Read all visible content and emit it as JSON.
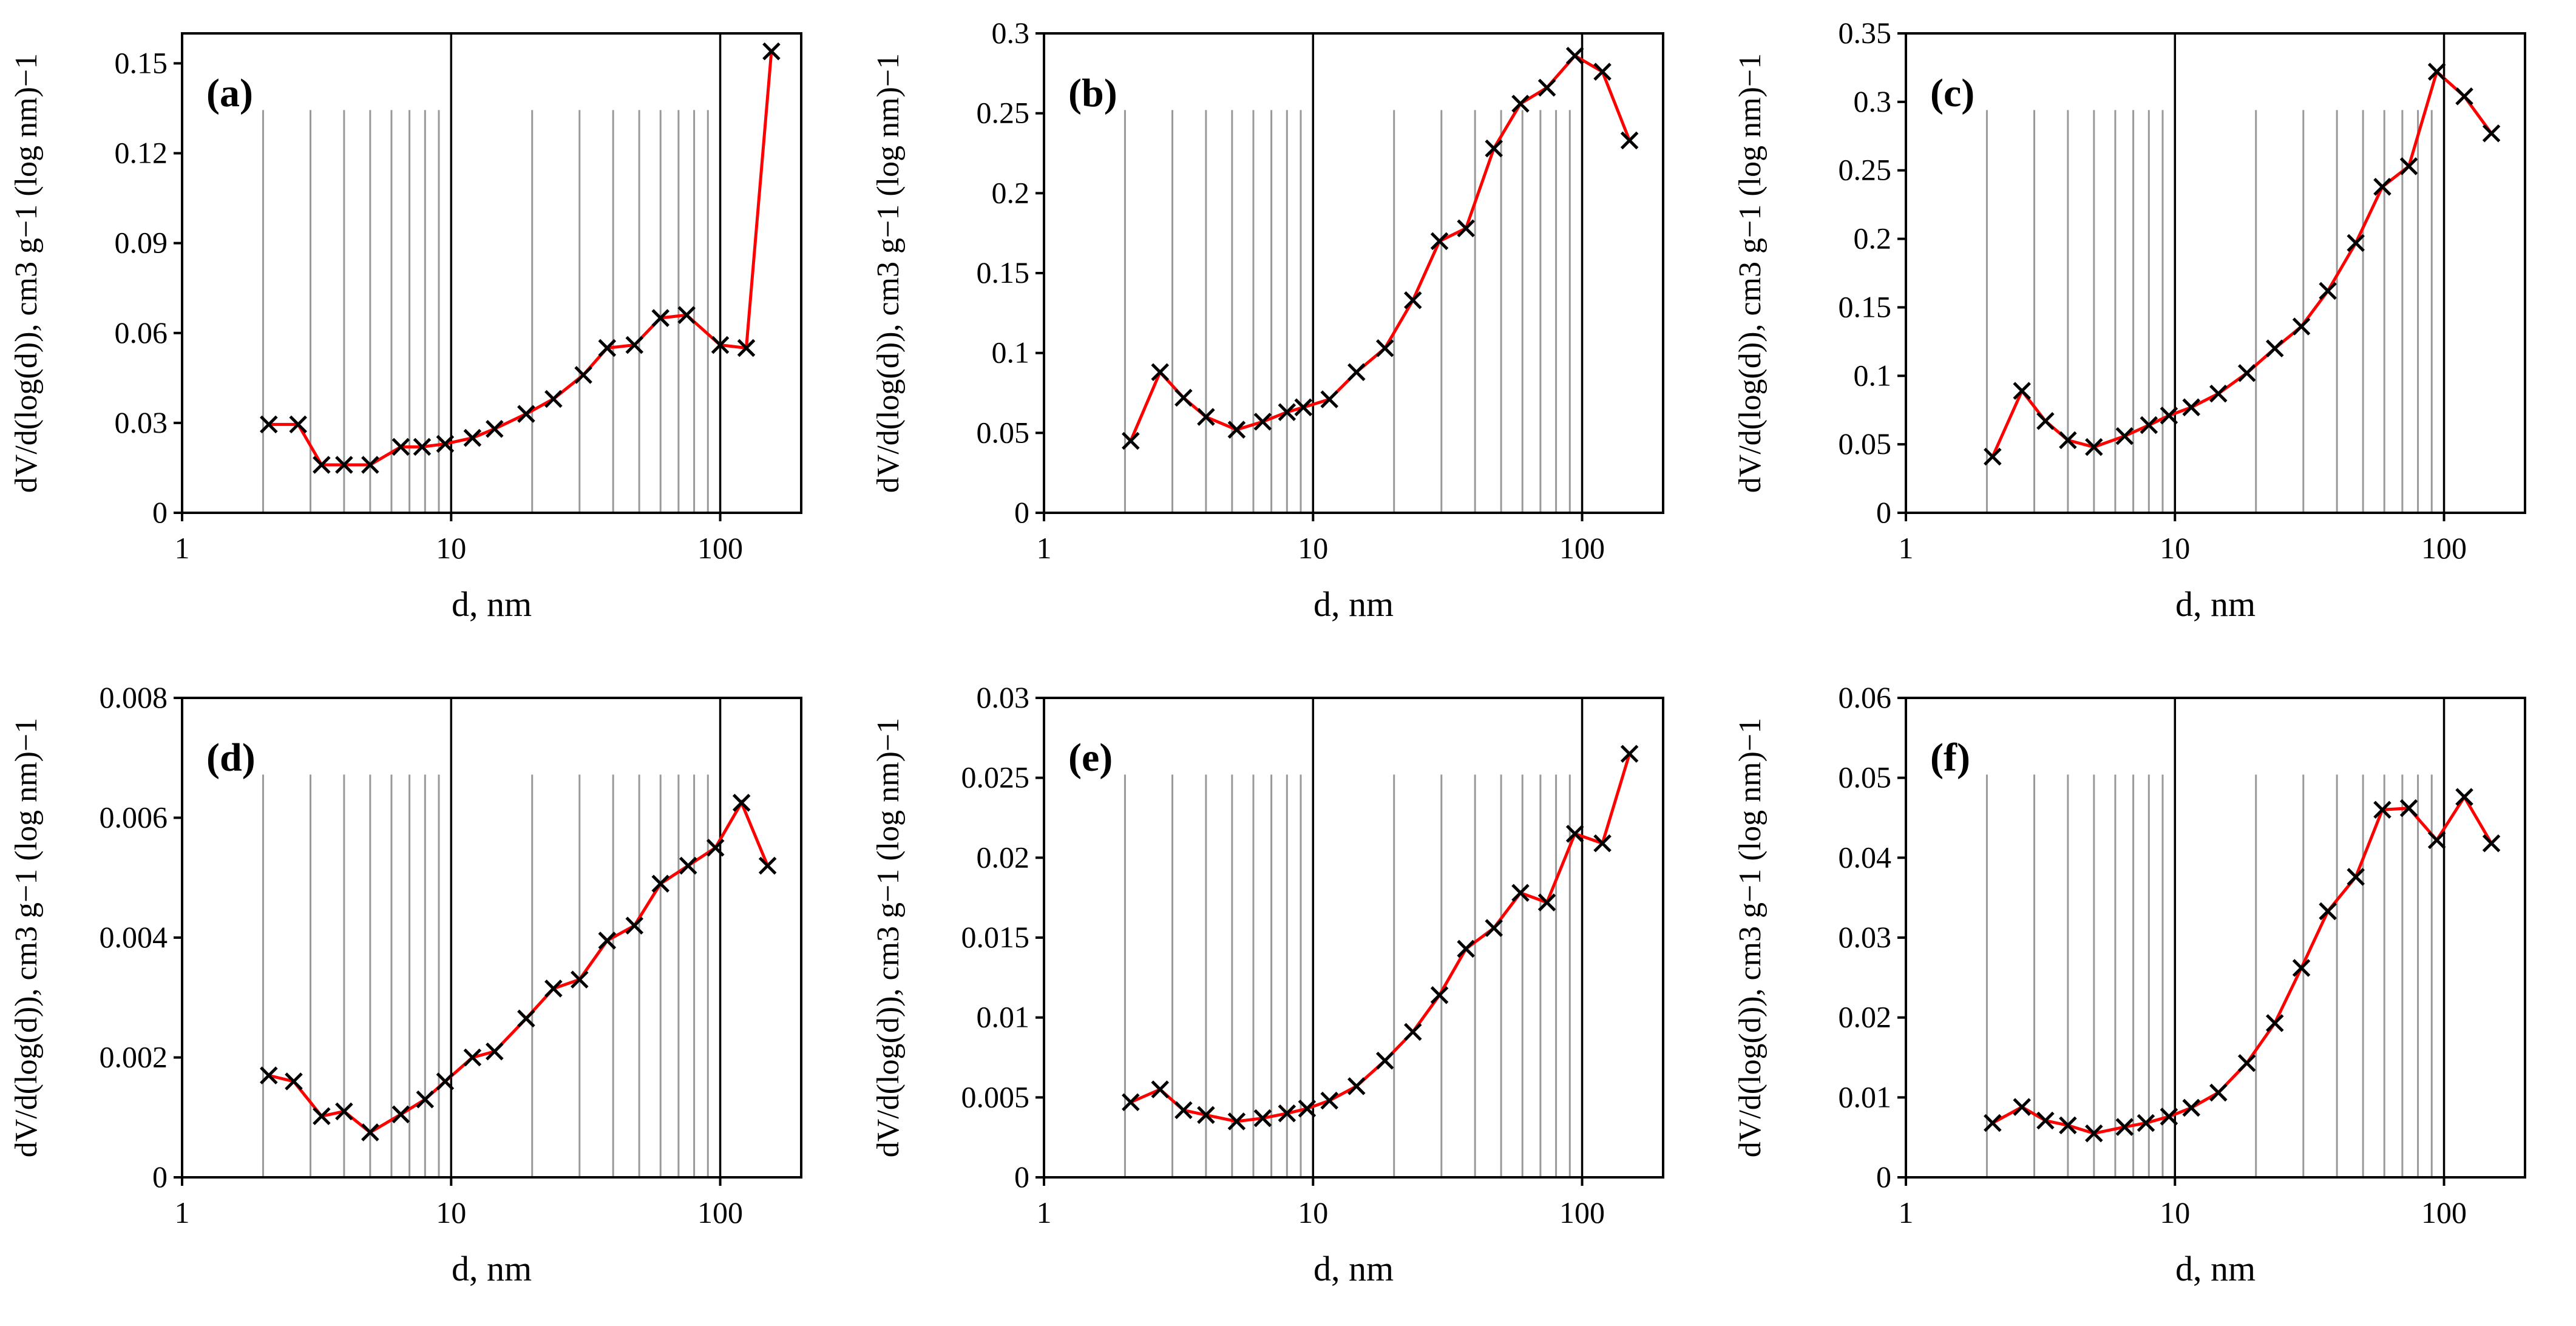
{
  "figure": {
    "description_label": "dV/d(log(d)) pore size distribution panels"
  },
  "chart_data": [
    {
      "type": "line",
      "panel": "a",
      "letter": "a",
      "xlabel": "d, nm",
      "xscale": "log",
      "xlim": [
        1,
        200
      ],
      "xticks": [
        "1",
        "10",
        "100"
      ],
      "ylabel": "dV/d(log(d)), cm3 g−1 (log nm)−1",
      "ylim": [
        0,
        0.16
      ],
      "yticks": [
        "0",
        "0.03",
        "0.06",
        "0.09",
        "0.12",
        "0.15"
      ],
      "grid_minor_x": true,
      "series": [
        {
          "name": "a",
          "color": "#ff0000",
          "marker": "x",
          "x": [
            2.1,
            2.7,
            3.3,
            4.0,
            5.0,
            6.5,
            7.8,
            9.5,
            12,
            14.5,
            19,
            24,
            31,
            38,
            48,
            60,
            75,
            100,
            125,
            155
          ],
          "y": [
            0.0295,
            0.0295,
            0.016,
            0.016,
            0.016,
            0.022,
            0.022,
            0.023,
            0.025,
            0.028,
            0.033,
            0.038,
            0.046,
            0.055,
            0.056,
            0.065,
            0.066,
            0.056,
            0.055,
            0.154
          ]
        }
      ]
    },
    {
      "type": "line",
      "panel": "b",
      "letter": "b",
      "xlabel": "d, nm",
      "xscale": "log",
      "xlim": [
        1,
        200
      ],
      "xticks": [
        "1",
        "10",
        "100"
      ],
      "ylabel": "dV/d(log(d)), cm3 g−1 (log nm)−1",
      "ylim": [
        0,
        0.3
      ],
      "yticks": [
        "0",
        "0.05",
        "0.1",
        "0.15",
        "0.2",
        "0.25",
        "0.3"
      ],
      "grid_minor_x": true,
      "series": [
        {
          "name": "b",
          "color": "#ff0000",
          "marker": "x",
          "x": [
            2.1,
            2.7,
            3.3,
            4.0,
            5.2,
            6.5,
            8.0,
            9.2,
            11.5,
            14.5,
            18.5,
            23.5,
            29.5,
            37,
            47,
            59,
            74,
            94,
            119,
            150
          ],
          "y": [
            0.045,
            0.088,
            0.072,
            0.06,
            0.052,
            0.057,
            0.063,
            0.066,
            0.071,
            0.088,
            0.103,
            0.133,
            0.17,
            0.178,
            0.228,
            0.256,
            0.266,
            0.286,
            0.276,
            0.233
          ]
        }
      ]
    },
    {
      "type": "line",
      "panel": "c",
      "letter": "c",
      "xlabel": "d, nm",
      "xscale": "log",
      "xlim": [
        1,
        200
      ],
      "xticks": [
        "1",
        "10",
        "100"
      ],
      "ylabel": "dV/d(log(d)), cm3 g−1 (log nm)−1",
      "ylim": [
        0,
        0.35
      ],
      "yticks": [
        "0",
        "0.05",
        "0.1",
        "0.15",
        "0.2",
        "0.25",
        "0.3",
        "0.35"
      ],
      "grid_minor_x": true,
      "series": [
        {
          "name": "c",
          "color": "#ff0000",
          "marker": "x",
          "x": [
            2.1,
            2.7,
            3.3,
            4.0,
            5.0,
            6.5,
            8.0,
            9.5,
            11.5,
            14.5,
            18.5,
            23.5,
            29.5,
            37,
            47,
            59,
            74,
            94,
            119,
            150
          ],
          "y": [
            0.041,
            0.089,
            0.067,
            0.053,
            0.048,
            0.056,
            0.064,
            0.071,
            0.077,
            0.087,
            0.102,
            0.12,
            0.136,
            0.162,
            0.197,
            0.238,
            0.253,
            0.322,
            0.304,
            0.277
          ]
        }
      ]
    },
    {
      "type": "line",
      "panel": "d",
      "letter": "d",
      "xlabel": "d, nm",
      "xscale": "log",
      "xlim": [
        1,
        200
      ],
      "xticks": [
        "1",
        "10",
        "100"
      ],
      "ylabel": "dV/d(log(d)), cm3 g−1 (log nm)−1",
      "ylim": [
        0,
        0.008
      ],
      "yticks": [
        "0",
        "0.002",
        "0.004",
        "0.006",
        "0.008"
      ],
      "grid_minor_x": true,
      "series": [
        {
          "name": "d",
          "color": "#ff0000",
          "marker": "x",
          "x": [
            2.1,
            2.6,
            3.3,
            4.0,
            5.0,
            6.5,
            8.0,
            9.5,
            12,
            14.5,
            19,
            24,
            30,
            38,
            48,
            60,
            76,
            96,
            120,
            150
          ],
          "y": [
            0.0017,
            0.0016,
            0.00102,
            0.0011,
            0.00075,
            0.00105,
            0.0013,
            0.0016,
            0.002,
            0.0021,
            0.00265,
            0.00315,
            0.0033,
            0.00395,
            0.0042,
            0.0049,
            0.0052,
            0.0055,
            0.00625,
            0.0052
          ]
        }
      ]
    },
    {
      "type": "line",
      "panel": "e",
      "letter": "e",
      "xlabel": "d, nm",
      "xscale": "log",
      "xlim": [
        1,
        200
      ],
      "xticks": [
        "1",
        "10",
        "100"
      ],
      "ylabel": "dV/d(log(d)), cm3 g−1 (log nm)−1",
      "ylim": [
        0,
        0.03
      ],
      "yticks": [
        "0",
        "0.005",
        "0.01",
        "0.015",
        "0.02",
        "0.025",
        "0.03"
      ],
      "grid_minor_x": true,
      "series": [
        {
          "name": "e",
          "color": "#ff0000",
          "marker": "x",
          "x": [
            2.1,
            2.7,
            3.3,
            4.0,
            5.2,
            6.5,
            8.0,
            9.5,
            11.5,
            14.5,
            18.5,
            23.5,
            29.5,
            37,
            47,
            59,
            74,
            94,
            119,
            150
          ],
          "y": [
            0.0047,
            0.0055,
            0.0042,
            0.0039,
            0.0035,
            0.0037,
            0.004,
            0.0043,
            0.0048,
            0.0057,
            0.0073,
            0.0091,
            0.0114,
            0.0143,
            0.0156,
            0.0178,
            0.0172,
            0.0215,
            0.0209,
            0.0265
          ]
        }
      ]
    },
    {
      "type": "line",
      "panel": "f",
      "letter": "f",
      "xlabel": "d, nm",
      "xscale": "log",
      "xlim": [
        1,
        200
      ],
      "xticks": [
        "1",
        "10",
        "100"
      ],
      "ylabel": "dV/d(log(d)), cm3 g−1 (log nm)−1",
      "ylim": [
        0,
        0.06
      ],
      "yticks": [
        "0",
        "0.01",
        "0.02",
        "0.03",
        "0.04",
        "0.05",
        "0.06"
      ],
      "grid_minor_x": true,
      "series": [
        {
          "name": "f",
          "color": "#ff0000",
          "marker": "x",
          "x": [
            2.1,
            2.7,
            3.3,
            4.0,
            5.0,
            6.5,
            7.8,
            9.5,
            11.5,
            14.5,
            18.5,
            23.5,
            29.5,
            37,
            47,
            59,
            74,
            94,
            119,
            150
          ],
          "y": [
            0.0068,
            0.0088,
            0.0071,
            0.0065,
            0.0055,
            0.0063,
            0.0068,
            0.0076,
            0.0087,
            0.0106,
            0.0143,
            0.0193,
            0.0262,
            0.0333,
            0.0376,
            0.046,
            0.0462,
            0.0422,
            0.0476,
            0.0418
          ]
        }
      ]
    }
  ]
}
